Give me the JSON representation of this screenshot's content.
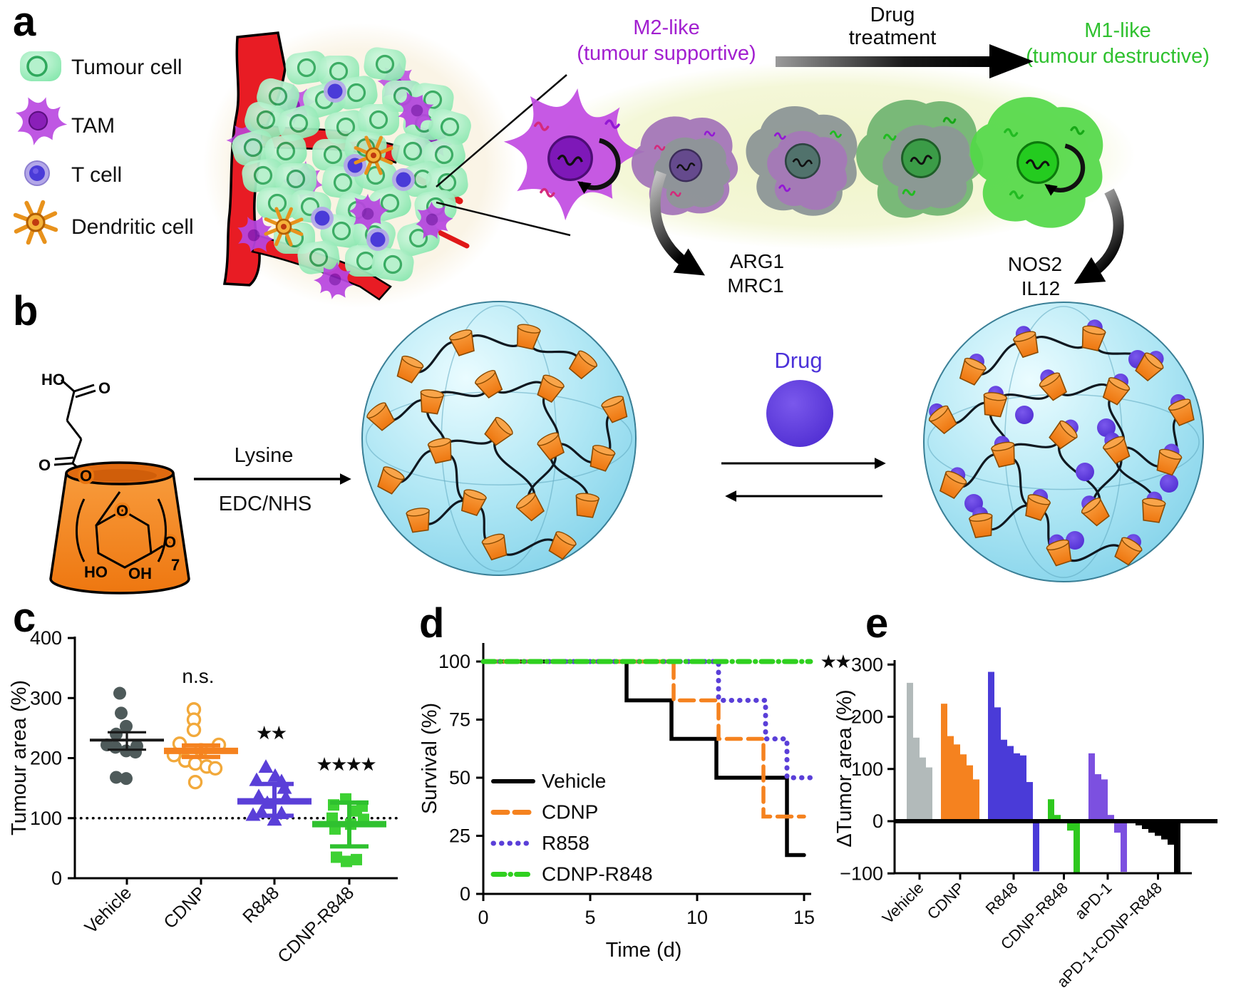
{
  "panels": {
    "a": "a",
    "b": "b",
    "c": "c",
    "d": "d",
    "e": "e"
  },
  "colors": {
    "m2_purple": "#A21FD0",
    "m1_green": "#2FC12F",
    "orange": "#F5821F",
    "blue_violet": "#5A3FD8",
    "bright_green": "#2FD01F",
    "gray_bar": "#B2BABA",
    "apd1_purple": "#7C50E0",
    "drug_purple": "#5B35D5",
    "vessel_red": "#E81C24",
    "tumour_green": "#8BEAB0",
    "sphere_cyan": "#8ED9EC"
  },
  "panel_a": {
    "legend": [
      {
        "name": "tumour-cell",
        "label": "Tumour cell"
      },
      {
        "name": "tam",
        "label": "TAM"
      },
      {
        "name": "t-cell",
        "label": "T cell"
      },
      {
        "name": "dendritic-cell",
        "label": "Dendritic cell"
      }
    ],
    "m2_title": "M2-like",
    "m2_subtitle": "(tumour supportive)",
    "drug_line1": "Drug",
    "drug_line2": "treatment",
    "m1_title": "M1-like",
    "m1_subtitle": "(tumour destructive)",
    "m2_markers": [
      "ARG1",
      "MRC1"
    ],
    "m1_markers": [
      "NOS2",
      "IL12"
    ]
  },
  "panel_b": {
    "reaction_top": "Lysine",
    "reaction_bottom": "EDC/NHS",
    "drug_label": "Drug",
    "structure": {
      "ho_top": "HO",
      "o_carbonyl_top": "O",
      "o_carbonyl_left": "O",
      "o_ester": "O",
      "o_ring": "O",
      "o_glycosidic": "O",
      "ho_bottom": "HO",
      "oh_bottom": "OH",
      "repeat_count": "7"
    }
  },
  "chart_data": [
    {
      "panel": "c",
      "type": "scatter",
      "ylabel": "Tumour area (%)",
      "ylim": [
        0,
        400
      ],
      "yticks": [
        0,
        100,
        200,
        300,
        400
      ],
      "reference_line_y": 100,
      "categories": [
        "Vehicle",
        "CDNP",
        "R848",
        "CDNP-R848"
      ],
      "groups": [
        {
          "name": "Vehicle",
          "marker": "circle",
          "color": "#4E5A5A",
          "bar_color": "#1a1a1a",
          "values": [
            308,
            275,
            253,
            240,
            222,
            220,
            218,
            212,
            210,
            168,
            166
          ],
          "mean": 230,
          "sd_upper": 243,
          "sd_lower": 214,
          "annotation": ""
        },
        {
          "name": "CDNP",
          "marker": "circle-open",
          "color": "#F2A93B",
          "bar_color": "#F5821F",
          "values": [
            281,
            264,
            247,
            224,
            222,
            213,
            205,
            196,
            191,
            186,
            183,
            160
          ],
          "mean": 212,
          "sd_upper": 221,
          "sd_lower": 202,
          "annotation": "n.s."
        },
        {
          "name": "R848",
          "marker": "triangle",
          "color": "#5A3FD8",
          "bar_color": "#5A3FD8",
          "values": [
            185,
            170,
            163,
            161,
            150,
            136,
            134,
            125,
            110,
            108,
            105,
            97
          ],
          "mean": 128,
          "sd_upper": 157,
          "sd_lower": 104,
          "annotation": "★★"
        },
        {
          "name": "CDNP-R848",
          "marker": "square",
          "color": "#3DD133",
          "bar_color": "#2FC12F",
          "values": [
            132,
            122,
            120,
            112,
            100,
            98,
            90,
            82,
            35,
            31,
            28
          ],
          "mean": 90,
          "sd_upper": 126,
          "sd_lower": 53,
          "annotation": "★★★★"
        }
      ]
    },
    {
      "panel": "d",
      "type": "line-step",
      "xlabel": "Time (d)",
      "ylabel": "Survival (%)",
      "xlim": [
        0,
        15
      ],
      "ylim": [
        0,
        100
      ],
      "xticks": [
        0,
        5,
        10,
        15
      ],
      "yticks": [
        0,
        25,
        50,
        75,
        100
      ],
      "annotation": "★★",
      "legend_position": "lower-left",
      "series": [
        {
          "name": "Vehicle",
          "color": "#000000",
          "style": "solid",
          "points": [
            [
              0,
              100
            ],
            [
              6.7,
              100
            ],
            [
              6.7,
              83.3
            ],
            [
              8.8,
              83.3
            ],
            [
              8.8,
              66.7
            ],
            [
              10.9,
              66.7
            ],
            [
              10.9,
              50
            ],
            [
              14.2,
              50
            ],
            [
              14.2,
              16.7
            ],
            [
              15,
              16.7
            ]
          ]
        },
        {
          "name": "CDNP",
          "color": "#F5821F",
          "style": "dashed",
          "points": [
            [
              0,
              100
            ],
            [
              8.9,
              100
            ],
            [
              8.9,
              83.3
            ],
            [
              11,
              83.3
            ],
            [
              11,
              66.7
            ],
            [
              13.1,
              66.7
            ],
            [
              13.1,
              33.3
            ],
            [
              15,
              33.3
            ]
          ]
        },
        {
          "name": "R858",
          "color": "#5A3FD8",
          "style": "dotted",
          "points": [
            [
              0,
              100
            ],
            [
              11,
              100
            ],
            [
              11,
              83.3
            ],
            [
              13.2,
              83.3
            ],
            [
              13.2,
              66.7
            ],
            [
              14.2,
              66.7
            ],
            [
              14.2,
              50
            ],
            [
              15.3,
              50
            ]
          ]
        },
        {
          "name": "CDNP-R848",
          "color": "#2FD01F",
          "style": "dashdot",
          "points": [
            [
              0,
              100
            ],
            [
              15.3,
              100
            ]
          ]
        }
      ]
    },
    {
      "panel": "e",
      "type": "waterfall-bar",
      "ylabel": "ΔTumor area (%)",
      "ylim": [
        -100,
        300
      ],
      "yticks": [
        -100,
        0,
        100,
        200,
        300
      ],
      "groups": [
        {
          "name": "Vehicle",
          "color": "#B2BABA",
          "values": [
            265,
            160,
            122,
            103
          ]
        },
        {
          "name": "CDNP",
          "color": "#F5821F",
          "values": [
            225,
            163,
            147,
            128,
            107,
            80
          ]
        },
        {
          "name": "R848",
          "color": "#4A3BD8",
          "values": [
            286,
            218,
            156,
            144,
            130,
            126,
            75,
            -96
          ]
        },
        {
          "name": "CDNP-R848",
          "color": "#2EC81E",
          "values": [
            42,
            12,
            2,
            -18,
            -100
          ]
        },
        {
          "name": "aPD-1",
          "color": "#7C50E0",
          "values": [
            130,
            90,
            80,
            12,
            -22,
            -97
          ]
        },
        {
          "name": "aPD-1+CDNP-R848",
          "color": "#000000",
          "values": [
            -8,
            -15,
            -22,
            -28,
            -35,
            -45,
            -100
          ]
        }
      ]
    }
  ]
}
